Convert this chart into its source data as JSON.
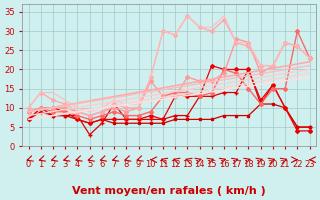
{
  "background_color": "#d0f0f0",
  "grid_color": "#a0c8c8",
  "xlabel": "Vent moyen/en rafales ( km/h )",
  "xlabel_color": "#cc0000",
  "xlabel_fontsize": 8,
  "ylabel_ticks": [
    0,
    5,
    10,
    15,
    20,
    25,
    30,
    35
  ],
  "xticks": [
    0,
    1,
    2,
    3,
    4,
    5,
    6,
    7,
    8,
    9,
    10,
    11,
    12,
    13,
    14,
    15,
    16,
    17,
    18,
    19,
    20,
    21,
    22,
    23
  ],
  "xlim": [
    -0.5,
    23.5
  ],
  "ylim": [
    0,
    37
  ],
  "tick_color": "#cc0000",
  "tick_fontsize": 6,
  "lines": [
    {
      "x": [
        0,
        1,
        2,
        3,
        4,
        5,
        6,
        7,
        8,
        9,
        10,
        11,
        12,
        13,
        14,
        15,
        16,
        17,
        18,
        19,
        20,
        21,
        22,
        23
      ],
      "y": [
        7,
        10,
        8,
        8,
        7,
        6,
        7,
        6,
        6,
        6,
        6,
        6,
        7,
        7,
        7,
        7,
        8,
        8,
        8,
        11,
        11,
        10,
        5,
        5
      ],
      "color": "#cc0000",
      "lw": 0.9,
      "marker": "s",
      "ms": 2.0
    },
    {
      "x": [
        0,
        1,
        2,
        3,
        4,
        5,
        6,
        7,
        8,
        9,
        10,
        11,
        12,
        13,
        14,
        15,
        16,
        17,
        18,
        19,
        20,
        21,
        22,
        23
      ],
      "y": [
        7,
        9,
        8,
        8,
        8,
        3,
        6,
        11,
        7,
        7,
        7,
        7,
        8,
        8,
        13,
        13,
        14,
        14,
        20,
        11,
        16,
        10,
        5,
        5
      ],
      "color": "#dd0000",
      "lw": 0.9,
      "marker": "+",
      "ms": 3.0
    },
    {
      "x": [
        0,
        1,
        2,
        3,
        4,
        5,
        6,
        7,
        8,
        9,
        10,
        11,
        12,
        13,
        14,
        15,
        16,
        17,
        18,
        19,
        20,
        21,
        22,
        23
      ],
      "y": [
        7,
        10,
        10,
        9,
        7,
        6,
        7,
        7,
        7,
        7,
        8,
        7,
        13,
        13,
        13,
        21,
        20,
        20,
        20,
        12,
        16,
        10,
        4,
        4
      ],
      "color": "#ee0000",
      "lw": 0.9,
      "marker": "D",
      "ms": 2.0
    },
    {
      "x": [
        0,
        1,
        2,
        3,
        4,
        5,
        6,
        7,
        8,
        9,
        10,
        11,
        12,
        13,
        14,
        15,
        16,
        17,
        18,
        19,
        20,
        21,
        22,
        23
      ],
      "y": [
        9,
        10,
        9,
        9,
        8,
        7,
        8,
        9,
        8,
        8,
        9,
        13,
        14,
        14,
        13,
        14,
        20,
        19,
        15,
        11,
        15,
        15,
        30,
        23
      ],
      "color": "#ff6666",
      "lw": 1.0,
      "marker": "D",
      "ms": 2.0
    },
    {
      "x": [
        0,
        1,
        2,
        3,
        4,
        5,
        6,
        7,
        8,
        9,
        10,
        11,
        12,
        13,
        14,
        15,
        16,
        17,
        18,
        19,
        20,
        21,
        22,
        23
      ],
      "y": [
        9,
        10,
        10,
        10,
        9,
        8,
        9,
        10,
        9,
        10,
        17,
        13,
        13,
        18,
        17,
        17,
        19,
        28,
        27,
        19,
        21,
        27,
        26,
        23
      ],
      "color": "#ff9999",
      "lw": 1.0,
      "marker": "D",
      "ms": 2.0
    },
    {
      "x": [
        0,
        1,
        2,
        3,
        4,
        5,
        6,
        7,
        8,
        9,
        10,
        11,
        12,
        13,
        14,
        15,
        16,
        17,
        18,
        19,
        20,
        21,
        22,
        23
      ],
      "y": [
        10,
        14,
        12,
        11,
        9,
        8,
        9,
        11,
        10,
        10,
        18,
        30,
        29,
        34,
        31,
        30,
        33,
        27,
        26,
        21,
        21,
        27,
        26,
        23
      ],
      "color": "#ffaaaa",
      "lw": 1.0,
      "marker": "D",
      "ms": 2.0
    },
    {
      "x": [
        0,
        1,
        2,
        3,
        4,
        5,
        6,
        7,
        8,
        9,
        10,
        11,
        12,
        13,
        14,
        15,
        16,
        17,
        18,
        19,
        20,
        21,
        22,
        23
      ],
      "y": [
        10,
        14,
        14,
        12,
        10,
        9,
        10,
        12,
        11,
        11,
        18,
        30,
        29,
        34,
        31,
        31,
        34,
        27,
        27,
        21,
        21,
        27,
        26,
        23
      ],
      "color": "#ffbbbb",
      "lw": 0.8,
      "marker": null,
      "ms": 0
    },
    {
      "x": [
        0,
        23
      ],
      "y": [
        9,
        22
      ],
      "color": "#ffaaaa",
      "lw": 1.2,
      "marker": null,
      "ms": 0
    },
    {
      "x": [
        0,
        23
      ],
      "y": [
        9,
        21
      ],
      "color": "#ffbbbb",
      "lw": 1.0,
      "marker": null,
      "ms": 0
    },
    {
      "x": [
        0,
        23
      ],
      "y": [
        8,
        20
      ],
      "color": "#ffcccc",
      "lw": 1.0,
      "marker": null,
      "ms": 0
    },
    {
      "x": [
        0,
        23
      ],
      "y": [
        7,
        19
      ],
      "color": "#ffd0d0",
      "lw": 1.0,
      "marker": null,
      "ms": 0
    },
    {
      "x": [
        0,
        23
      ],
      "y": [
        7,
        18
      ],
      "color": "#ffe0e0",
      "lw": 1.0,
      "marker": null,
      "ms": 0
    }
  ],
  "wind_arrows_x": [
    0,
    1,
    2,
    3,
    4,
    5,
    6,
    7,
    8,
    9,
    10,
    11,
    12,
    13,
    14,
    15,
    16,
    17,
    18,
    19,
    20,
    21,
    22,
    23
  ],
  "wind_arrows_dir": [
    225,
    225,
    225,
    225,
    225,
    225,
    225,
    225,
    225,
    225,
    270,
    315,
    315,
    315,
    45,
    45,
    45,
    45,
    45,
    45,
    45,
    45,
    90,
    270
  ]
}
